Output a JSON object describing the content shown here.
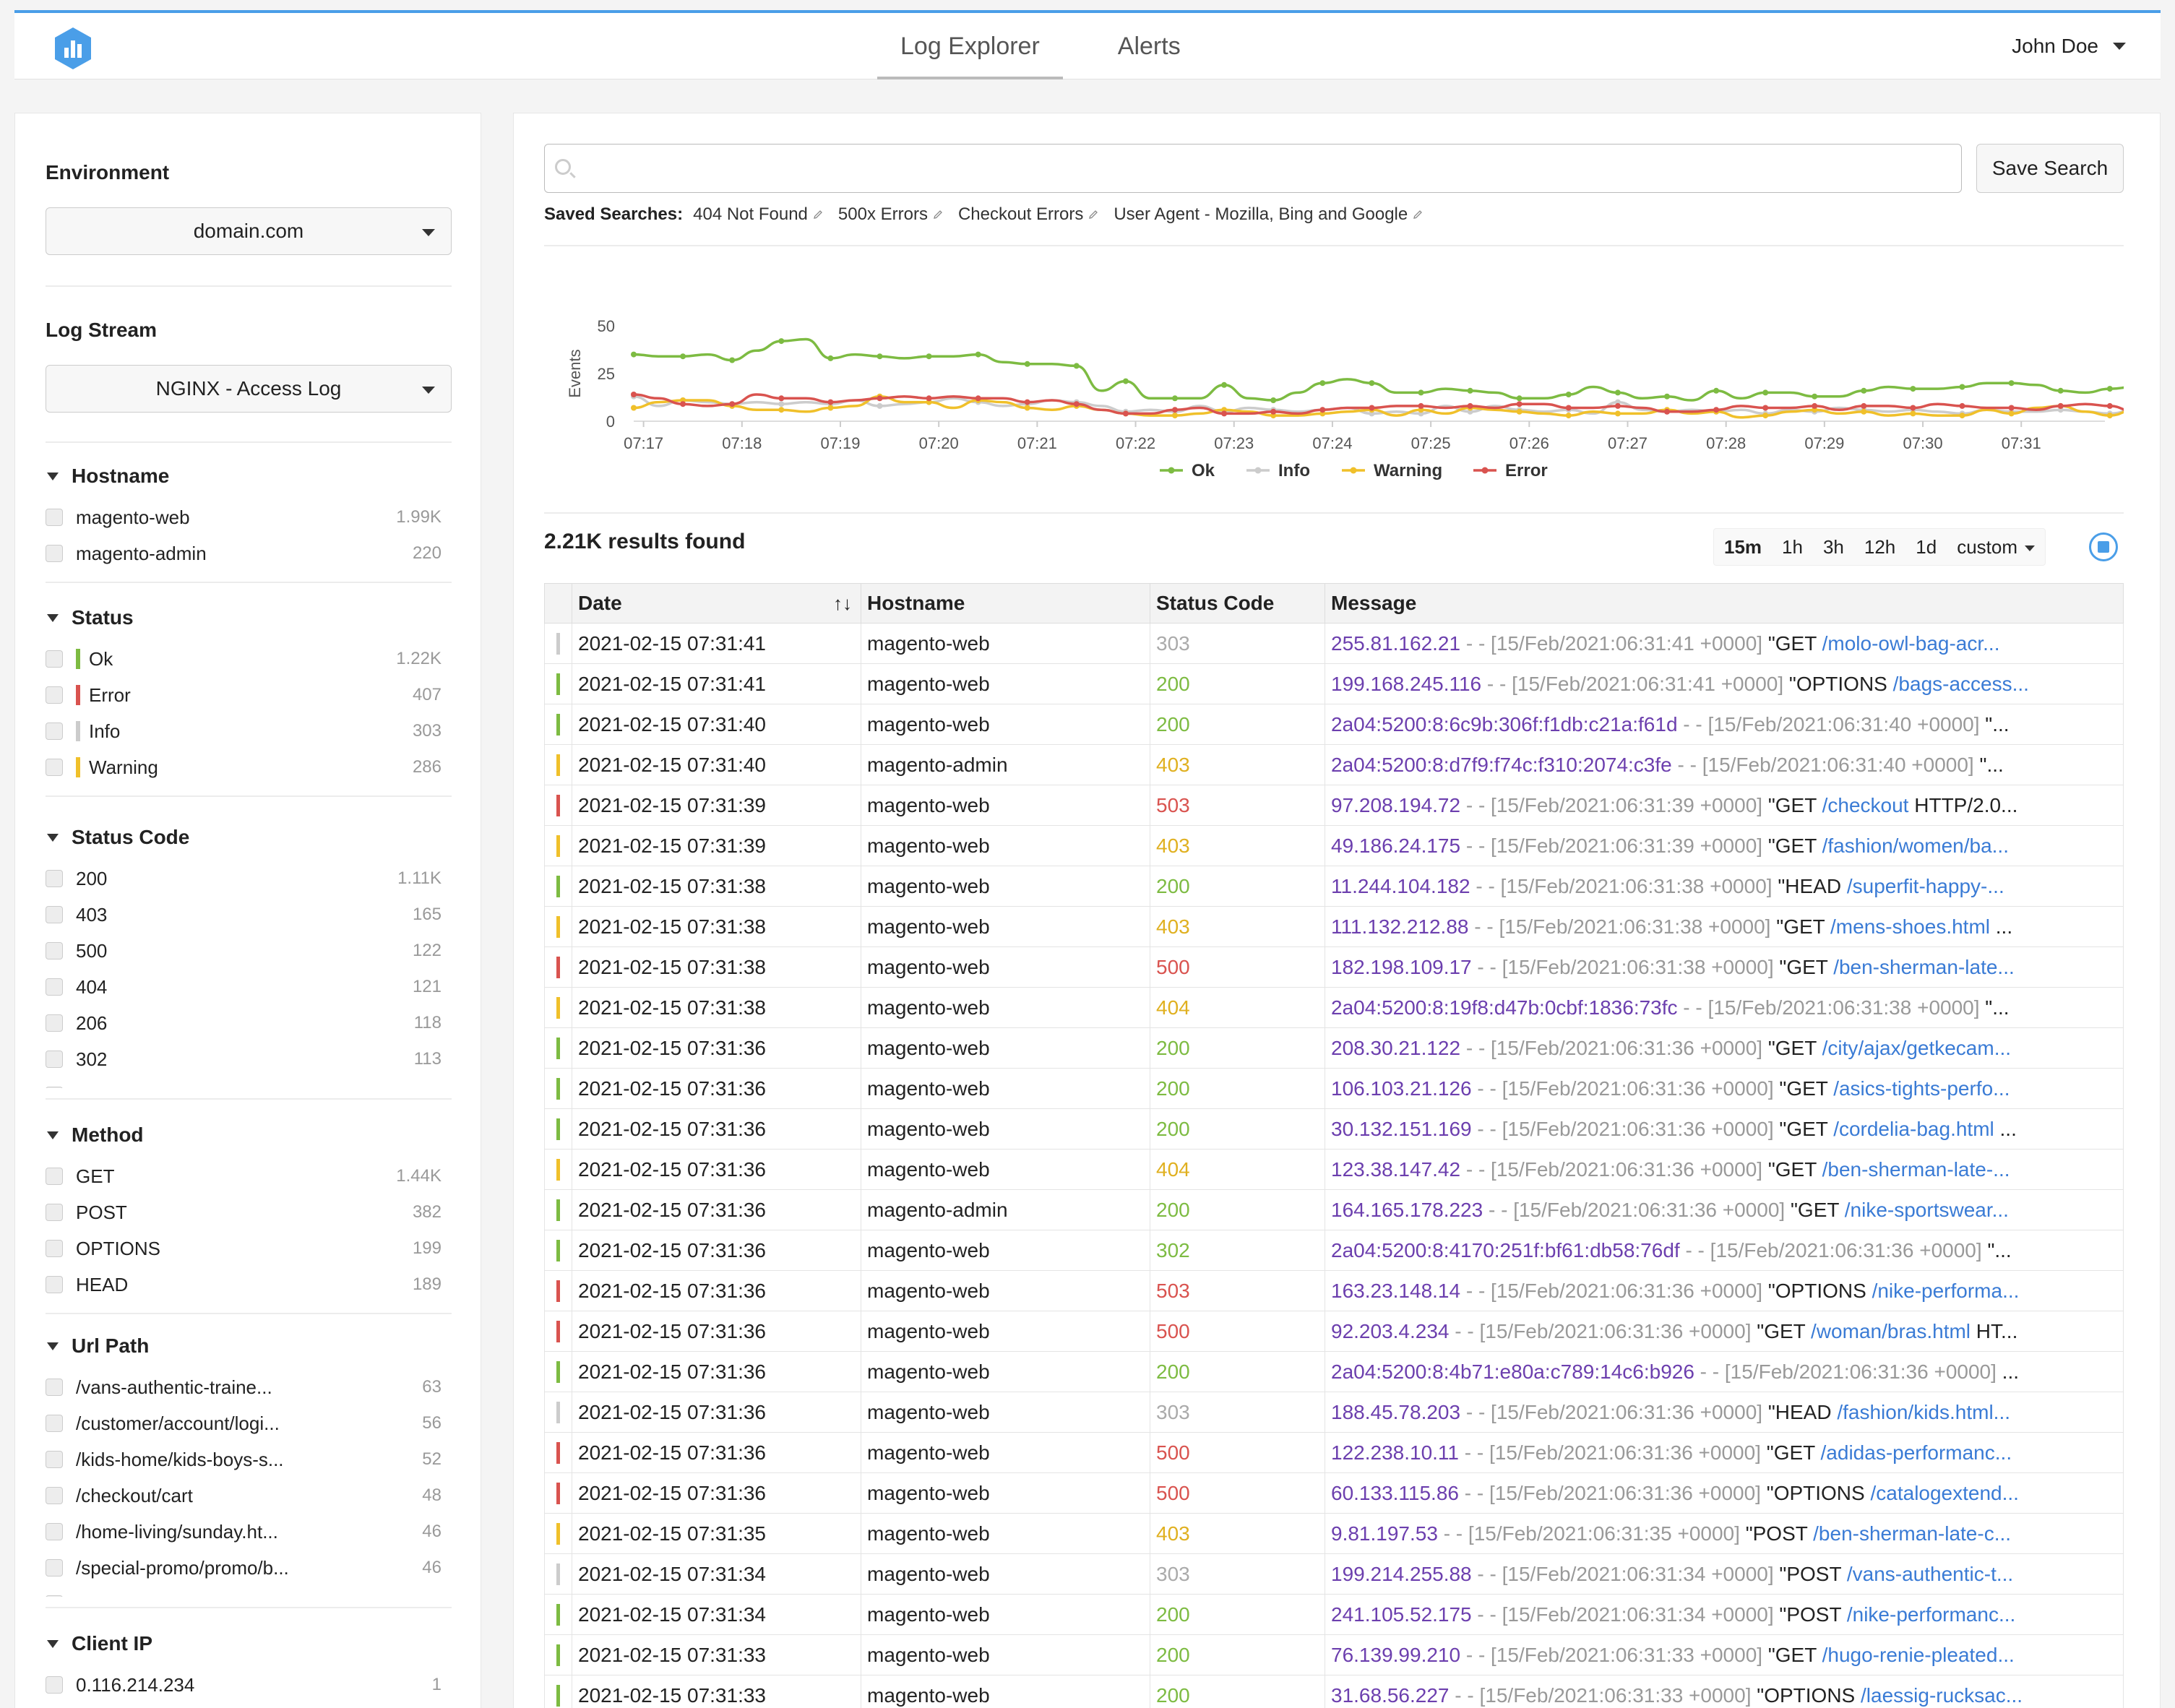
{
  "header": {
    "logo_icon": "bar-chart-hexagon-icon",
    "tabs": [
      {
        "label": "Log Explorer",
        "active": true
      },
      {
        "label": "Alerts",
        "active": false
      }
    ],
    "user": "John Doe"
  },
  "sidebar": {
    "environment": {
      "title": "Environment",
      "value": "domain.com"
    },
    "log_stream": {
      "title": "Log Stream",
      "value": "NGINX - Access Log"
    },
    "facets": {
      "hostname": {
        "title": "Hostname",
        "items": [
          {
            "label": "magento-web",
            "count": "1.99K"
          },
          {
            "label": "magento-admin",
            "count": "220"
          }
        ]
      },
      "status": {
        "title": "Status",
        "items": [
          {
            "label": "Ok",
            "count": "1.22K",
            "color": "#7dbb42"
          },
          {
            "label": "Error",
            "count": "407",
            "color": "#d9534f"
          },
          {
            "label": "Info",
            "count": "303",
            "color": "#cccccc"
          },
          {
            "label": "Warning",
            "count": "286",
            "color": "#f0c02a"
          }
        ]
      },
      "status_code": {
        "title": "Status Code",
        "items": [
          {
            "label": "200",
            "count": "1.11K"
          },
          {
            "label": "403",
            "count": "165"
          },
          {
            "label": "500",
            "count": "122"
          },
          {
            "label": "404",
            "count": "121"
          },
          {
            "label": "206",
            "count": "118"
          },
          {
            "label": "302",
            "count": "113"
          },
          {
            "label": "503",
            "count": "104"
          }
        ]
      },
      "method": {
        "title": "Method",
        "items": [
          {
            "label": "GET",
            "count": "1.44K"
          },
          {
            "label": "POST",
            "count": "382"
          },
          {
            "label": "OPTIONS",
            "count": "199"
          },
          {
            "label": "HEAD",
            "count": "189"
          }
        ]
      },
      "url_path": {
        "title": "Url Path",
        "items": [
          {
            "label": "/vans-authentic-traine...",
            "count": "63"
          },
          {
            "label": "/customer/account/logi...",
            "count": "56"
          },
          {
            "label": "/kids-home/kids-boys-s...",
            "count": "52"
          },
          {
            "label": "/checkout/cart",
            "count": "48"
          },
          {
            "label": "/home-living/sunday.ht...",
            "count": "46"
          },
          {
            "label": "/special-promo/promo/b...",
            "count": "46"
          },
          {
            "label": "/mens-shoes.html",
            "count": "45"
          }
        ]
      },
      "client_ip": {
        "title": "Client IP",
        "items": [
          {
            "label": "0.116.214.234",
            "count": "1"
          }
        ]
      }
    }
  },
  "search": {
    "value": "",
    "placeholder": "",
    "save_label": "Save Search",
    "saved_label": "Saved Searches:",
    "saved": [
      "404 Not Found",
      "500x Errors",
      "Checkout Errors",
      "User Agent - Mozilla, Bing and Google"
    ]
  },
  "chart_data": {
    "type": "line",
    "title": "",
    "xlabel": "",
    "ylabel": "Events",
    "ylim": [
      0,
      50
    ],
    "yticks": [
      0,
      25,
      50
    ],
    "x_ticks": [
      "07:17",
      "07:18",
      "07:19",
      "07:20",
      "07:21",
      "07:22",
      "07:23",
      "07:24",
      "07:25",
      "07:26",
      "07:27",
      "07:28",
      "07:29",
      "07:30",
      "07:31"
    ],
    "x_start_minutes": 16.9,
    "x_step_minutes": 0.25,
    "legend_position": "bottom-center",
    "grid": false,
    "series": [
      {
        "name": "Ok",
        "color": "#7dbb42",
        "values": [
          35,
          34,
          34,
          35,
          32,
          37,
          42,
          43,
          33,
          35,
          34,
          33,
          34,
          34,
          35,
          31,
          30,
          30,
          29,
          16,
          21,
          12,
          12,
          12,
          19,
          12,
          11,
          15,
          20,
          22,
          20,
          15,
          15,
          17,
          16,
          15,
          12,
          12,
          14,
          18,
          15,
          12,
          13,
          11,
          16,
          12,
          15,
          15,
          13,
          13,
          16,
          18,
          17,
          17,
          18,
          20,
          20,
          19,
          16,
          15,
          17,
          18,
          12,
          12,
          15,
          17,
          21,
          15,
          15,
          16,
          28,
          16,
          16,
          15,
          14,
          18,
          25,
          29,
          30,
          33,
          34,
          26,
          25,
          26,
          33,
          35,
          30
        ]
      },
      {
        "name": "Info",
        "color": "#cccccc",
        "values": [
          13,
          8,
          11,
          10,
          9,
          10,
          9,
          10,
          9,
          11,
          8,
          9,
          10,
          12,
          10,
          8,
          9,
          11,
          10,
          8,
          5,
          6,
          5,
          8,
          5,
          7,
          6,
          5,
          6,
          7,
          4,
          5,
          4,
          8,
          5,
          8,
          6,
          5,
          6,
          4,
          10,
          6,
          5,
          6,
          5,
          6,
          4,
          6,
          5,
          7,
          6,
          5,
          6,
          5,
          4,
          6,
          5,
          5,
          6,
          5,
          4,
          6,
          5,
          6,
          4,
          5,
          4,
          4,
          5,
          6,
          4,
          5,
          5,
          9,
          7,
          6,
          8,
          10,
          10,
          11,
          10,
          10,
          9,
          10,
          8,
          7,
          4
        ]
      },
      {
        "name": "Warning",
        "color": "#f0c02a",
        "values": [
          7,
          10,
          11,
          11,
          8,
          6,
          6,
          5,
          7,
          8,
          13,
          10,
          10,
          7,
          11,
          10,
          7,
          6,
          8,
          6,
          4,
          3,
          3,
          4,
          6,
          5,
          3,
          3,
          4,
          5,
          6,
          3,
          6,
          4,
          7,
          6,
          5,
          4,
          3,
          5,
          4,
          4,
          6,
          4,
          5,
          2,
          3,
          5,
          6,
          4,
          5,
          3,
          4,
          3,
          3,
          6,
          4,
          7,
          8,
          5,
          3,
          6,
          8,
          6,
          9,
          4,
          3,
          2,
          3,
          4,
          3,
          4,
          4,
          6,
          3,
          4,
          3,
          5,
          8,
          12,
          10,
          10,
          8,
          8,
          9,
          10,
          10
        ]
      },
      {
        "name": "Error",
        "color": "#d9534f",
        "values": [
          14,
          12,
          9,
          8,
          9,
          14,
          12,
          12,
          10,
          11,
          12,
          13,
          12,
          13,
          12,
          12,
          10,
          11,
          9,
          6,
          4,
          4,
          6,
          7,
          4,
          4,
          5,
          4,
          6,
          7,
          7,
          8,
          8,
          7,
          8,
          7,
          9,
          9,
          7,
          7,
          8,
          7,
          5,
          5,
          6,
          8,
          7,
          7,
          8,
          6,
          8,
          8,
          7,
          9,
          8,
          7,
          7,
          6,
          8,
          9,
          8,
          5,
          6,
          7,
          7,
          9,
          7,
          5,
          6,
          7,
          8,
          7,
          6,
          6,
          5,
          6,
          5,
          10,
          11,
          10,
          4,
          5,
          13,
          11,
          10,
          10,
          14
        ]
      }
    ]
  },
  "results": {
    "count_label": "2.21K results found",
    "time_ranges": [
      "15m",
      "1h",
      "3h",
      "12h",
      "1d",
      "custom"
    ],
    "active_range": "15m",
    "live_icon": "stop-circle-icon",
    "columns": [
      "Date",
      "Hostname",
      "Status Code",
      "Message"
    ],
    "sort_indicator": "↑↓",
    "rows": [
      {
        "level": "#cccccc",
        "date": "2021-02-15 07:31:41",
        "host": "magento-web",
        "code": "303",
        "code_color": "#aaaaaa",
        "ip": "255.81.162.21",
        "meta": " - - [15/Feb/2021:06:31:41 +0000] ",
        "verb": "\"GET ",
        "path": "/molo-owl-bag-acr...",
        "tail": ""
      },
      {
        "level": "#7dbb42",
        "date": "2021-02-15 07:31:41",
        "host": "magento-web",
        "code": "200",
        "code_color": "#7dbb42",
        "ip": "199.168.245.116",
        "meta": " - - [15/Feb/2021:06:31:41 +0000] ",
        "verb": "\"OPTIONS ",
        "path": "/bags-access...",
        "tail": ""
      },
      {
        "level": "#7dbb42",
        "date": "2021-02-15 07:31:40",
        "host": "magento-web",
        "code": "200",
        "code_color": "#7dbb42",
        "ip": "2a04:5200:8:6c9b:306f:f1db:c21a:f61d",
        "meta": " - - [15/Feb/2021:06:31:40 +0000] ",
        "verb": "\"...",
        "path": "",
        "tail": ""
      },
      {
        "level": "#f0c02a",
        "date": "2021-02-15 07:31:40",
        "host": "magento-admin",
        "code": "403",
        "code_color": "#e0b020",
        "ip": "2a04:5200:8:d7f9:f74c:f310:2074:c3fe",
        "meta": " - - [15/Feb/2021:06:31:40 +0000] ",
        "verb": "\"...",
        "path": "",
        "tail": ""
      },
      {
        "level": "#d9534f",
        "date": "2021-02-15 07:31:39",
        "host": "magento-web",
        "code": "503",
        "code_color": "#d9534f",
        "ip": "97.208.194.72",
        "meta": " - - [15/Feb/2021:06:31:39 +0000] ",
        "verb": "\"GET ",
        "path": "/checkout",
        "tail": " HTTP/2.0..."
      },
      {
        "level": "#f0c02a",
        "date": "2021-02-15 07:31:39",
        "host": "magento-web",
        "code": "403",
        "code_color": "#e0b020",
        "ip": "49.186.24.175",
        "meta": " - - [15/Feb/2021:06:31:39 +0000] ",
        "verb": "\"GET ",
        "path": "/fashion/women/ba...",
        "tail": ""
      },
      {
        "level": "#7dbb42",
        "date": "2021-02-15 07:31:38",
        "host": "magento-web",
        "code": "200",
        "code_color": "#7dbb42",
        "ip": "11.244.104.182",
        "meta": " - - [15/Feb/2021:06:31:38 +0000] ",
        "verb": "\"HEAD ",
        "path": "/superfit-happy-...",
        "tail": ""
      },
      {
        "level": "#f0c02a",
        "date": "2021-02-15 07:31:38",
        "host": "magento-web",
        "code": "403",
        "code_color": "#e0b020",
        "ip": "111.132.212.88",
        "meta": " - - [15/Feb/2021:06:31:38 +0000] ",
        "verb": "\"GET ",
        "path": "/mens-shoes.html",
        "tail": " ..."
      },
      {
        "level": "#d9534f",
        "date": "2021-02-15 07:31:38",
        "host": "magento-web",
        "code": "500",
        "code_color": "#d9534f",
        "ip": "182.198.109.17",
        "meta": " - - [15/Feb/2021:06:31:38 +0000] ",
        "verb": "\"GET ",
        "path": "/ben-sherman-late...",
        "tail": ""
      },
      {
        "level": "#f0c02a",
        "date": "2021-02-15 07:31:38",
        "host": "magento-web",
        "code": "404",
        "code_color": "#e0b020",
        "ip": "2a04:5200:8:19f8:d47b:0cbf:1836:73fc",
        "meta": " - - [15/Feb/2021:06:31:38 +0000] ",
        "verb": "\"...",
        "path": "",
        "tail": ""
      },
      {
        "level": "#7dbb42",
        "date": "2021-02-15 07:31:36",
        "host": "magento-web",
        "code": "200",
        "code_color": "#7dbb42",
        "ip": "208.30.21.122",
        "meta": " - - [15/Feb/2021:06:31:36 +0000] ",
        "verb": "\"GET ",
        "path": "/city/ajax/getkecam...",
        "tail": ""
      },
      {
        "level": "#7dbb42",
        "date": "2021-02-15 07:31:36",
        "host": "magento-web",
        "code": "200",
        "code_color": "#7dbb42",
        "ip": "106.103.21.126",
        "meta": " - - [15/Feb/2021:06:31:36 +0000] ",
        "verb": "\"GET ",
        "path": "/asics-tights-perfo...",
        "tail": ""
      },
      {
        "level": "#7dbb42",
        "date": "2021-02-15 07:31:36",
        "host": "magento-web",
        "code": "200",
        "code_color": "#7dbb42",
        "ip": "30.132.151.169",
        "meta": " - - [15/Feb/2021:06:31:36 +0000] ",
        "verb": "\"GET ",
        "path": "/cordelia-bag.html",
        "tail": " ..."
      },
      {
        "level": "#f0c02a",
        "date": "2021-02-15 07:31:36",
        "host": "magento-web",
        "code": "404",
        "code_color": "#e0b020",
        "ip": "123.38.147.42",
        "meta": " - - [15/Feb/2021:06:31:36 +0000] ",
        "verb": "\"GET ",
        "path": "/ben-sherman-late-...",
        "tail": ""
      },
      {
        "level": "#7dbb42",
        "date": "2021-02-15 07:31:36",
        "host": "magento-admin",
        "code": "200",
        "code_color": "#7dbb42",
        "ip": "164.165.178.223",
        "meta": " - - [15/Feb/2021:06:31:36 +0000] ",
        "verb": "\"GET ",
        "path": "/nike-sportswear...",
        "tail": ""
      },
      {
        "level": "#7dbb42",
        "date": "2021-02-15 07:31:36",
        "host": "magento-web",
        "code": "302",
        "code_color": "#7dbb42",
        "ip": "2a04:5200:8:4170:251f:bf61:db58:76df",
        "meta": " - - [15/Feb/2021:06:31:36 +0000] ",
        "verb": "\"...",
        "path": "",
        "tail": ""
      },
      {
        "level": "#d9534f",
        "date": "2021-02-15 07:31:36",
        "host": "magento-web",
        "code": "503",
        "code_color": "#d9534f",
        "ip": "163.23.148.14",
        "meta": " - - [15/Feb/2021:06:31:36 +0000] ",
        "verb": "\"OPTIONS ",
        "path": "/nike-performa...",
        "tail": ""
      },
      {
        "level": "#d9534f",
        "date": "2021-02-15 07:31:36",
        "host": "magento-web",
        "code": "500",
        "code_color": "#d9534f",
        "ip": "92.203.4.234",
        "meta": " - - [15/Feb/2021:06:31:36 +0000] ",
        "verb": "\"GET ",
        "path": "/woman/bras.html",
        "tail": " HT..."
      },
      {
        "level": "#7dbb42",
        "date": "2021-02-15 07:31:36",
        "host": "magento-web",
        "code": "200",
        "code_color": "#7dbb42",
        "ip": "2a04:5200:8:4b71:e80a:c789:14c6:b926",
        "meta": " - - [15/Feb/2021:06:31:36 +0000] ",
        "verb": "...",
        "path": "",
        "tail": ""
      },
      {
        "level": "#cccccc",
        "date": "2021-02-15 07:31:36",
        "host": "magento-web",
        "code": "303",
        "code_color": "#aaaaaa",
        "ip": "188.45.78.203",
        "meta": " - - [15/Feb/2021:06:31:36 +0000] ",
        "verb": "\"HEAD ",
        "path": "/fashion/kids.html...",
        "tail": ""
      },
      {
        "level": "#d9534f",
        "date": "2021-02-15 07:31:36",
        "host": "magento-web",
        "code": "500",
        "code_color": "#d9534f",
        "ip": "122.238.10.11",
        "meta": " - - [15/Feb/2021:06:31:36 +0000] ",
        "verb": "\"GET ",
        "path": "/adidas-performanc...",
        "tail": ""
      },
      {
        "level": "#d9534f",
        "date": "2021-02-15 07:31:36",
        "host": "magento-web",
        "code": "500",
        "code_color": "#d9534f",
        "ip": "60.133.115.86",
        "meta": " - - [15/Feb/2021:06:31:36 +0000] ",
        "verb": "\"OPTIONS ",
        "path": "/catalogextend...",
        "tail": ""
      },
      {
        "level": "#f0c02a",
        "date": "2021-02-15 07:31:35",
        "host": "magento-web",
        "code": "403",
        "code_color": "#e0b020",
        "ip": "9.81.197.53",
        "meta": " - - [15/Feb/2021:06:31:35 +0000] ",
        "verb": "\"POST ",
        "path": "/ben-sherman-late-c...",
        "tail": ""
      },
      {
        "level": "#cccccc",
        "date": "2021-02-15 07:31:34",
        "host": "magento-web",
        "code": "303",
        "code_color": "#aaaaaa",
        "ip": "199.214.255.88",
        "meta": " - - [15/Feb/2021:06:31:34 +0000] ",
        "verb": "\"POST ",
        "path": "/vans-authentic-t...",
        "tail": ""
      },
      {
        "level": "#7dbb42",
        "date": "2021-02-15 07:31:34",
        "host": "magento-web",
        "code": "200",
        "code_color": "#7dbb42",
        "ip": "241.105.52.175",
        "meta": " - - [15/Feb/2021:06:31:34 +0000] ",
        "verb": "\"POST ",
        "path": "/nike-performanc...",
        "tail": ""
      },
      {
        "level": "#7dbb42",
        "date": "2021-02-15 07:31:33",
        "host": "magento-web",
        "code": "200",
        "code_color": "#7dbb42",
        "ip": "76.139.99.210",
        "meta": " - - [15/Feb/2021:06:31:33 +0000] ",
        "verb": "\"GET ",
        "path": "/hugo-renie-pleated...",
        "tail": ""
      },
      {
        "level": "#7dbb42",
        "date": "2021-02-15 07:31:33",
        "host": "magento-web",
        "code": "200",
        "code_color": "#7dbb42",
        "ip": "31.68.56.227",
        "meta": " - - [15/Feb/2021:06:31:33 +0000] ",
        "verb": "\"OPTIONS ",
        "path": "/laessig-rucksac...",
        "tail": ""
      }
    ]
  }
}
